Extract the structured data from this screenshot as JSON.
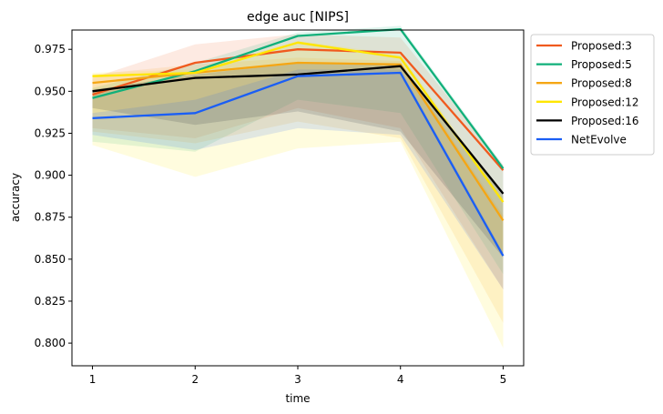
{
  "chart_data": {
    "type": "line",
    "title": "edge auc [NIPS]",
    "xlabel": "time",
    "ylabel": "accuracy",
    "x": [
      1,
      2,
      3,
      4,
      5
    ],
    "xticks": [
      "1",
      "2",
      "3",
      "4",
      "5"
    ],
    "xlim": [
      0.8,
      5.2
    ],
    "ylim": [
      0.7865,
      0.9865
    ],
    "yticks": [
      "0.800",
      "0.825",
      "0.850",
      "0.875",
      "0.900",
      "0.925",
      "0.950",
      "0.975"
    ],
    "ytick_values": [
      0.8,
      0.825,
      0.85,
      0.875,
      0.9,
      0.925,
      0.95,
      0.975
    ],
    "grid": false,
    "legend_placement": "outside upper-right",
    "series": [
      {
        "name": "Proposed:3",
        "color": "#f05a1e",
        "values": [
          0.948,
          0.967,
          0.975,
          0.973,
          0.903
        ],
        "band_low": [
          0.928,
          0.922,
          0.94,
          0.928,
          0.832
        ],
        "band_high": [
          0.958,
          0.978,
          0.984,
          0.982,
          0.906
        ]
      },
      {
        "name": "Proposed:5",
        "color": "#10b07a",
        "values": [
          0.946,
          0.962,
          0.983,
          0.987,
          0.904
        ],
        "band_low": [
          0.92,
          0.914,
          0.945,
          0.937,
          0.841
        ],
        "band_high": [
          0.952,
          0.967,
          0.985,
          0.989,
          0.906
        ]
      },
      {
        "name": "Proposed:8",
        "color": "#f5a614",
        "values": [
          0.955,
          0.961,
          0.967,
          0.966,
          0.873
        ],
        "band_low": [
          0.926,
          0.919,
          0.932,
          0.922,
          0.812
        ],
        "band_high": [
          0.96,
          0.966,
          0.97,
          0.968,
          0.876
        ]
      },
      {
        "name": "Proposed:12",
        "color": "#ffe600",
        "values": [
          0.959,
          0.961,
          0.979,
          0.97,
          0.884
        ],
        "band_low": [
          0.918,
          0.899,
          0.916,
          0.92,
          0.797
        ],
        "band_high": [
          0.961,
          0.963,
          0.98,
          0.972,
          0.887
        ]
      },
      {
        "name": "Proposed:16",
        "color": "#000000",
        "values": [
          0.95,
          0.958,
          0.96,
          0.965,
          0.889
        ],
        "band_low": [
          0.94,
          0.93,
          0.938,
          0.926,
          0.851
        ],
        "band_high": [
          0.951,
          0.96,
          0.967,
          0.966,
          0.89
        ]
      },
      {
        "name": "NetEvolve",
        "color": "#1a5ef5",
        "values": [
          0.934,
          0.937,
          0.959,
          0.961,
          0.852
        ],
        "band_low": [
          0.924,
          0.915,
          0.928,
          0.924,
          0.832
        ],
        "band_high": [
          0.937,
          0.945,
          0.963,
          0.963,
          0.854
        ]
      }
    ]
  }
}
